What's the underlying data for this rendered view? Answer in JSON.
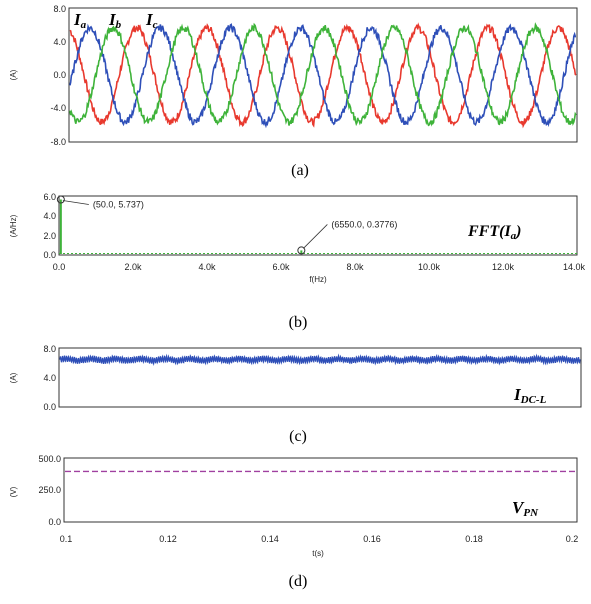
{
  "figure": {
    "captions": [
      "(a)",
      "(b)",
      "(c)",
      "(d)"
    ]
  },
  "chart_data": [
    {
      "type": "line",
      "id": "a",
      "ylabel": "(A)",
      "ylim": [
        -8,
        8
      ],
      "yticks": [
        "8.0",
        "4.0",
        "0.0",
        "-4.0",
        "-8.0"
      ],
      "series": [
        {
          "name": "I_a",
          "label_main": "I",
          "label_sub": "a",
          "color": "#e8392e",
          "amplitude": 5.7,
          "cycles": 7.2,
          "phase_deg": 108
        },
        {
          "name": "I_b",
          "label_main": "I",
          "label_sub": "b",
          "color": "#2e4fb8",
          "amplitude": 5.7,
          "cycles": 7.2,
          "phase_deg": -12
        },
        {
          "name": "I_c",
          "label_main": "I",
          "label_sub": "c",
          "color": "#3fb33a",
          "amplitude": 5.7,
          "cycles": 7.2,
          "phase_deg": -132
        }
      ],
      "grid": false
    },
    {
      "type": "bar",
      "id": "b",
      "title_main": "FFT(I",
      "title_sub": "a",
      "title_end": ")",
      "xlabel": "f(Hz)",
      "ylabel": "(A/Hz)",
      "xlim": [
        0,
        14000
      ],
      "ylim": [
        0,
        6
      ],
      "xticks": [
        "0.0",
        "2.0k",
        "4.0k",
        "6.0k",
        "8.0k",
        "10.0k",
        "12.0k",
        "14.0k"
      ],
      "yticks": [
        "6.0",
        "4.0",
        "2.0",
        "0.0"
      ],
      "points": [
        {
          "x": 50,
          "y": 5.737,
          "label": "(50.0, 5.737)"
        },
        {
          "x": 6550,
          "y": 0.3776,
          "label": "(6550.0, 0.3776)"
        }
      ],
      "color": "#3fb33a"
    },
    {
      "type": "line",
      "id": "c",
      "title_main": "I",
      "title_sub": "DC-L",
      "ylabel": "(A)",
      "ylim": [
        0,
        8
      ],
      "yticks": [
        "8.0",
        "4.0",
        "0.0"
      ],
      "mean": 6.5,
      "ripple": 0.4,
      "color": "#2e4fb8"
    },
    {
      "type": "line",
      "id": "d",
      "title_main": "V",
      "title_sub": "PN",
      "xlabel": "t(s)",
      "ylabel": "(V)",
      "xlim": [
        0.1,
        0.2
      ],
      "ylim": [
        0,
        500
      ],
      "xticks": [
        "0.1",
        "0.12",
        "0.14",
        "0.16",
        "0.18",
        "0.2"
      ],
      "yticks": [
        "500.0",
        "250.0",
        "0.0"
      ],
      "value": 400,
      "color": "#a040a0"
    }
  ]
}
